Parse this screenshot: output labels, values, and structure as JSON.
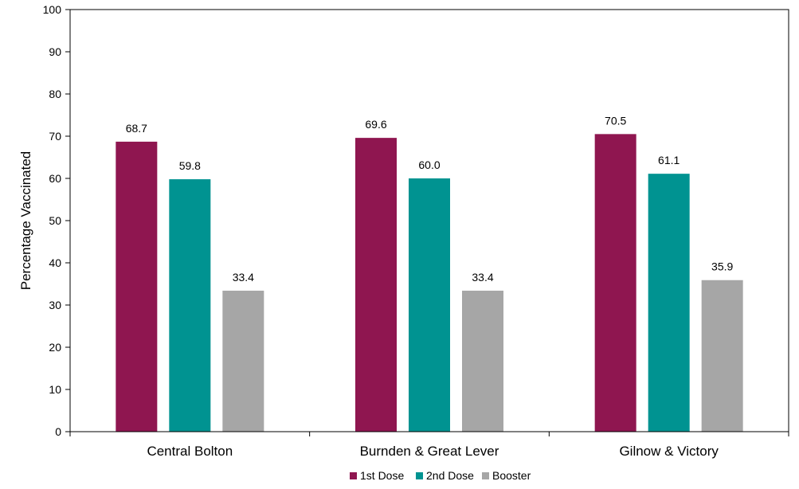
{
  "chart_data": {
    "type": "bar",
    "title": "",
    "xlabel": "",
    "ylabel": "Percentage Vaccinated",
    "ylim": [
      0,
      100
    ],
    "yticks": [
      0,
      10,
      20,
      30,
      40,
      50,
      60,
      70,
      80,
      90,
      100
    ],
    "grid": false,
    "legend_position": "bottom",
    "categories": [
      "Central Bolton",
      "Burnden & Great Lever",
      "Gilnow & Victory"
    ],
    "series": [
      {
        "name": "1st Dose",
        "color": "#8f1650",
        "values": [
          68.7,
          69.6,
          70.5
        ],
        "labels": [
          "68.7",
          "69.6",
          "70.5"
        ]
      },
      {
        "name": "2nd Dose",
        "color": "#009391",
        "values": [
          59.8,
          60.0,
          61.1
        ],
        "labels": [
          "59.8",
          "60.0",
          "61.1"
        ]
      },
      {
        "name": "Booster",
        "color": "#a6a6a6",
        "values": [
          33.4,
          33.4,
          35.9
        ],
        "labels": [
          "33.4",
          "33.4",
          "35.9"
        ]
      }
    ]
  }
}
